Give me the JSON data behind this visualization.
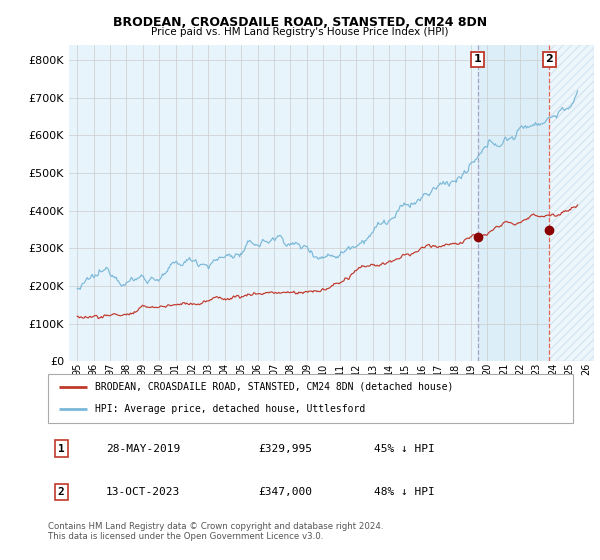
{
  "title1": "BRODEAN, CROASDAILE ROAD, STANSTED, CM24 8DN",
  "title2": "Price paid vs. HM Land Registry's House Price Index (HPI)",
  "ytick_labels": [
    "£0",
    "£100K",
    "£200K",
    "£300K",
    "£400K",
    "£500K",
    "£600K",
    "£700K",
    "£800K"
  ],
  "yticks": [
    0,
    100000,
    200000,
    300000,
    400000,
    500000,
    600000,
    700000,
    800000
  ],
  "ylim": [
    0,
    840000
  ],
  "xlim": [
    1994.5,
    2026.5
  ],
  "legend_line1": "BRODEAN, CROASDAILE ROAD, STANSTED, CM24 8DN (detached house)",
  "legend_line2": "HPI: Average price, detached house, Uttlesford",
  "point1_date": "28-MAY-2019",
  "point1_price": "£329,995",
  "point1_hpi": "45% ↓ HPI",
  "point1_x": 2019.4,
  "point1_y": 329995,
  "point2_date": "13-OCT-2023",
  "point2_price": "£347,000",
  "point2_hpi": "48% ↓ HPI",
  "point2_x": 2023.78,
  "point2_y": 347000,
  "footer": "Contains HM Land Registry data © Crown copyright and database right 2024.\nThis data is licensed under the Open Government Licence v3.0.",
  "hpi_color": "#7ab8d8",
  "price_color": "#c0392b",
  "dashed_color1": "#9999bb",
  "dashed_color2": "#e74c3c",
  "highlight_color": "#dceef8",
  "grid_color": "#cccccc",
  "background_color": "#e8f4fc"
}
